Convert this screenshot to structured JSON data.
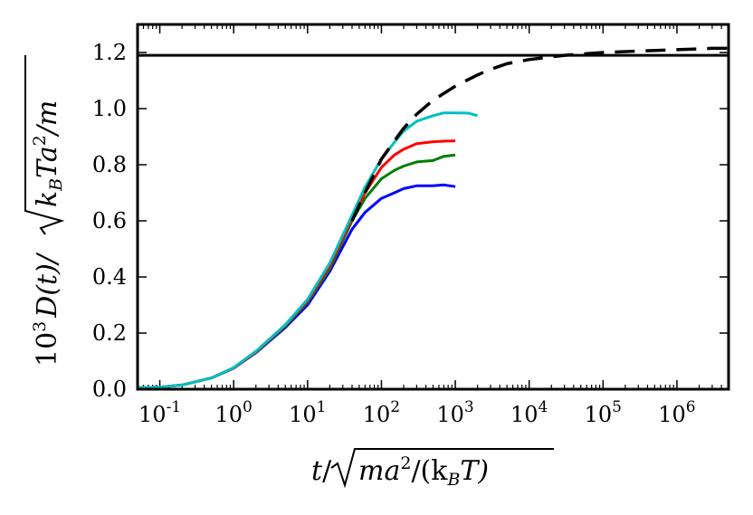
{
  "chart_data": {
    "type": "line",
    "title": "",
    "xscale": "log",
    "xlim": [
      0.05,
      5000000
    ],
    "ylim": [
      0.0,
      1.3
    ],
    "grid": false,
    "legend": "none",
    "xlabel": {
      "t": "t",
      "slash": "/",
      "radicand_prefix": "ma",
      "radicand_exp": "2",
      "radicand_mid": "/(k",
      "radicand_sub": "B",
      "radicand_suffix": "T)"
    },
    "ylabel": {
      "prefix": "10",
      "prefix_exp": "3",
      "func": "D(t)/",
      "radicand_prefix": "k",
      "radicand_sub": "B",
      "radicand_mid": "Ta",
      "radicand_exp": "2",
      "radicand_suffix": "/m"
    },
    "xticks": [
      {
        "value": 0.1,
        "base": "10",
        "exp": "-1"
      },
      {
        "value": 1,
        "base": "10",
        "exp": "0"
      },
      {
        "value": 10,
        "base": "10",
        "exp": "1"
      },
      {
        "value": 100,
        "base": "10",
        "exp": "2"
      },
      {
        "value": 1000,
        "base": "10",
        "exp": "3"
      },
      {
        "value": 10000,
        "base": "10",
        "exp": "4"
      },
      {
        "value": 100000,
        "base": "10",
        "exp": "5"
      },
      {
        "value": 1000000,
        "base": "10",
        "exp": "6"
      }
    ],
    "yticks": [
      {
        "value": 0.0,
        "label": "0.0"
      },
      {
        "value": 0.2,
        "label": "0.2"
      },
      {
        "value": 0.4,
        "label": "0.4"
      },
      {
        "value": 0.6,
        "label": "0.6"
      },
      {
        "value": 0.8,
        "label": "0.8"
      },
      {
        "value": 1.0,
        "label": "1.0"
      },
      {
        "value": 1.2,
        "label": "1.2"
      }
    ],
    "hlines": [
      {
        "name": "asymptote",
        "y": 1.19,
        "color": "#000000",
        "style": "solid"
      }
    ],
    "series": [
      {
        "name": "blue",
        "color": "#0000ff",
        "style": "solid",
        "x": [
          0.05,
          0.1,
          0.2,
          0.5,
          1,
          2,
          5,
          10,
          20,
          40,
          60,
          100,
          150,
          200,
          300,
          500,
          700,
          1000
        ],
        "y": [
          0.005,
          0.007,
          0.015,
          0.04,
          0.075,
          0.13,
          0.22,
          0.3,
          0.42,
          0.57,
          0.63,
          0.68,
          0.7,
          0.715,
          0.725,
          0.725,
          0.728,
          0.722
        ]
      },
      {
        "name": "green",
        "color": "#007f00",
        "style": "solid",
        "x": [
          0.05,
          0.1,
          0.2,
          0.5,
          1,
          2,
          5,
          10,
          20,
          40,
          60,
          100,
          150,
          200,
          300,
          500,
          700,
          1000
        ],
        "y": [
          0.005,
          0.007,
          0.015,
          0.04,
          0.076,
          0.132,
          0.225,
          0.31,
          0.43,
          0.6,
          0.68,
          0.75,
          0.78,
          0.795,
          0.81,
          0.815,
          0.83,
          0.835
        ]
      },
      {
        "name": "red",
        "color": "#ff0000",
        "style": "solid",
        "x": [
          0.05,
          0.1,
          0.2,
          0.5,
          1,
          2,
          5,
          10,
          20,
          40,
          60,
          100,
          150,
          200,
          300,
          500,
          700,
          1000
        ],
        "y": [
          0.005,
          0.007,
          0.015,
          0.04,
          0.076,
          0.133,
          0.228,
          0.315,
          0.44,
          0.61,
          0.7,
          0.79,
          0.835,
          0.855,
          0.875,
          0.882,
          0.884,
          0.885
        ]
      },
      {
        "name": "cyan",
        "color": "#00bfbf",
        "style": "solid",
        "x": [
          0.05,
          0.1,
          0.2,
          0.5,
          1,
          2,
          5,
          10,
          20,
          40,
          60,
          100,
          150,
          200,
          300,
          500,
          700,
          1000,
          1500,
          2000
        ],
        "y": [
          0.005,
          0.007,
          0.015,
          0.04,
          0.077,
          0.135,
          0.23,
          0.32,
          0.45,
          0.62,
          0.72,
          0.82,
          0.88,
          0.92,
          0.955,
          0.975,
          0.985,
          0.985,
          0.984,
          0.975
        ]
      },
      {
        "name": "theory",
        "color": "#000000",
        "style": "dashed",
        "x": [
          40,
          60,
          100,
          200,
          300,
          500,
          1000,
          2000,
          3000,
          5000,
          10000,
          30000,
          100000,
          300000,
          1000000,
          3000000,
          5000000
        ],
        "y": [
          0.6,
          0.7,
          0.82,
          0.93,
          0.98,
          1.03,
          1.08,
          1.12,
          1.14,
          1.16,
          1.175,
          1.19,
          1.2,
          1.205,
          1.21,
          1.215,
          1.215
        ]
      }
    ]
  }
}
